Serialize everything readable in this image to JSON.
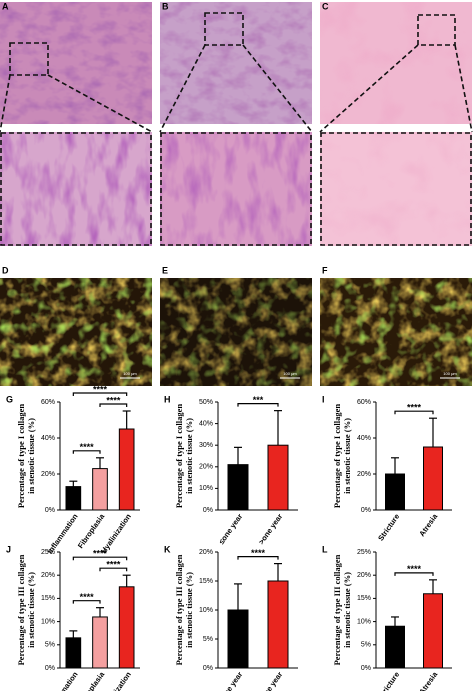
{
  "images": [
    {
      "label": "A"
    },
    {
      "label": "B"
    },
    {
      "label": "C"
    },
    {
      "label": "D",
      "scale": "100 μm"
    },
    {
      "label": "E",
      "scale": "100 μm"
    },
    {
      "label": "F",
      "scale": "100 μm"
    }
  ],
  "chart_data": [
    {
      "type": "bar",
      "panel": "G",
      "ylabel": [
        "Percentage of type I collagen",
        "in stenotic tissue (%)"
      ],
      "categories": [
        "Inflammation",
        "Fibroplasia",
        "Hyalinization"
      ],
      "values": [
        13,
        23,
        45
      ],
      "errors": [
        3,
        6,
        10
      ],
      "colors": [
        "#000000",
        "#f4a0a0",
        "#e8251f"
      ],
      "ylim": [
        0,
        60
      ],
      "yticks": [
        {
          "value": 0,
          "label": "0%"
        },
        {
          "value": 20,
          "label": "20%"
        },
        {
          "value": 40,
          "label": "40%"
        },
        {
          "value": 60,
          "label": "60%"
        }
      ],
      "annotations": [
        {
          "text": "****",
          "between": [
            "Inflammation",
            "Hyalinization"
          ]
        },
        {
          "text": "****",
          "between": [
            "Fibroplasia",
            "Hyalinization"
          ]
        },
        {
          "text": "****",
          "between": [
            "Inflammation",
            "Fibroplasia"
          ]
        }
      ]
    },
    {
      "type": "bar",
      "panel": "H",
      "ylabel": [
        "Percentage of type I collagen",
        "in stenotic tissue (%)"
      ],
      "categories": [
        "≤one year",
        ">one year"
      ],
      "values": [
        21,
        30
      ],
      "errors": [
        8,
        16
      ],
      "colors": [
        "#000000",
        "#e8251f"
      ],
      "ylim": [
        0,
        50
      ],
      "yticks": [
        {
          "value": 0,
          "label": "0%"
        },
        {
          "value": 10,
          "label": "10%"
        },
        {
          "value": 20,
          "label": "20%"
        },
        {
          "value": 30,
          "label": "30%"
        },
        {
          "value": 40,
          "label": "40%"
        },
        {
          "value": 50,
          "label": "50%"
        }
      ],
      "annotations": [
        {
          "text": "***",
          "between": [
            "≤one year",
            ">one year"
          ]
        }
      ]
    },
    {
      "type": "bar",
      "panel": "I",
      "ylabel": [
        "Percentage of type I collagen",
        "in stenotic tissue (%)"
      ],
      "categories": [
        "Stricture",
        "Atresia"
      ],
      "values": [
        20,
        35
      ],
      "errors": [
        9,
        16
      ],
      "colors": [
        "#000000",
        "#e8251f"
      ],
      "ylim": [
        0,
        60
      ],
      "yticks": [
        {
          "value": 0,
          "label": "0%"
        },
        {
          "value": 20,
          "label": "20%"
        },
        {
          "value": 40,
          "label": "40%"
        },
        {
          "value": 60,
          "label": "60%"
        }
      ],
      "annotations": [
        {
          "text": "****",
          "between": [
            "Stricture",
            "Atresia"
          ]
        }
      ]
    },
    {
      "type": "bar",
      "panel": "J",
      "ylabel": [
        "Percentage of type III collagen",
        "in stenotic tissue (%)"
      ],
      "categories": [
        "Inflammation",
        "Fibroplasia",
        "Hyalinization"
      ],
      "values": [
        6.5,
        11,
        17.5
      ],
      "errors": [
        1.5,
        2,
        2.5
      ],
      "colors": [
        "#000000",
        "#f4a0a0",
        "#e8251f"
      ],
      "ylim": [
        0,
        25
      ],
      "yticks": [
        {
          "value": 0,
          "label": "0%"
        },
        {
          "value": 5,
          "label": "5%"
        },
        {
          "value": 10,
          "label": "10%"
        },
        {
          "value": 15,
          "label": "15%"
        },
        {
          "value": 20,
          "label": "20%"
        },
        {
          "value": 25,
          "label": "25%"
        }
      ],
      "annotations": [
        {
          "text": "****",
          "between": [
            "Inflammation",
            "Hyalinization"
          ]
        },
        {
          "text": "****",
          "between": [
            "Fibroplasia",
            "Hyalinization"
          ]
        },
        {
          "text": "****",
          "between": [
            "Inflammation",
            "Fibroplasia"
          ]
        }
      ]
    },
    {
      "type": "bar",
      "panel": "K",
      "ylabel": [
        "Percentage of type III collagen",
        "in stenotic tissue (%)"
      ],
      "categories": [
        "≤one year",
        ">one year"
      ],
      "values": [
        10,
        15
      ],
      "errors": [
        4.5,
        3
      ],
      "colors": [
        "#000000",
        "#e8251f"
      ],
      "ylim": [
        0,
        20
      ],
      "yticks": [
        {
          "value": 0,
          "label": "0%"
        },
        {
          "value": 5,
          "label": "5%"
        },
        {
          "value": 10,
          "label": "10%"
        },
        {
          "value": 15,
          "label": "15%"
        },
        {
          "value": 20,
          "label": "20%"
        }
      ],
      "annotations": [
        {
          "text": "****",
          "between": [
            "≤one year",
            ">one year"
          ]
        }
      ]
    },
    {
      "type": "bar",
      "panel": "L",
      "ylabel": [
        "Percentage of type III collagen",
        "in stenotic tissue (%)"
      ],
      "categories": [
        "Stricture",
        "Atresia"
      ],
      "values": [
        9,
        16
      ],
      "errors": [
        2,
        3
      ],
      "colors": [
        "#000000",
        "#e8251f"
      ],
      "ylim": [
        0,
        25
      ],
      "yticks": [
        {
          "value": 0,
          "label": "0%"
        },
        {
          "value": 5,
          "label": "5%"
        },
        {
          "value": 10,
          "label": "10%"
        },
        {
          "value": 15,
          "label": "15%"
        },
        {
          "value": 20,
          "label": "20%"
        },
        {
          "value": 25,
          "label": "25%"
        }
      ],
      "annotations": [
        {
          "text": "****",
          "between": [
            "Stricture",
            "Atresia"
          ]
        }
      ]
    }
  ]
}
